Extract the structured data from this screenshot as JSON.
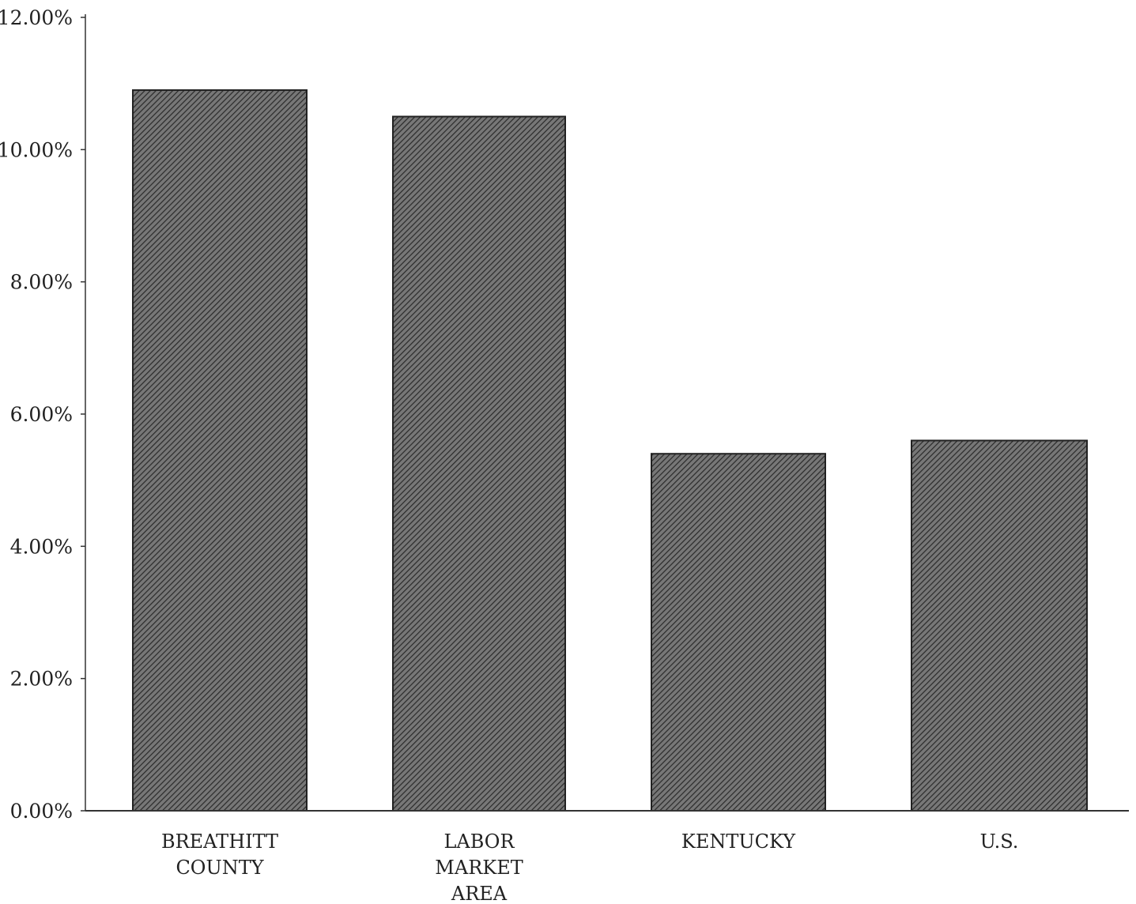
{
  "chart_data": {
    "type": "bar",
    "categories": [
      [
        "BREATHITT",
        "COUNTY"
      ],
      [
        "LABOR",
        "MARKET",
        "AREA"
      ],
      [
        "KENTUCKY"
      ],
      [
        "U.S."
      ]
    ],
    "values": [
      10.9,
      10.5,
      5.4,
      5.6
    ],
    "ylim": [
      0,
      12
    ],
    "yticks": [
      {
        "value": 0,
        "label": "0.00%"
      },
      {
        "value": 2,
        "label": "2.00%"
      },
      {
        "value": 4,
        "label": "4.00%"
      },
      {
        "value": 6,
        "label": "6.00%"
      },
      {
        "value": 8,
        "label": "8.00%"
      },
      {
        "value": 10,
        "label": "10.00%"
      },
      {
        "value": 12,
        "label": "12.00%"
      }
    ],
    "title": "",
    "xlabel": "",
    "ylabel": "",
    "grid": false,
    "bar_fill": "hatched-diagonal",
    "colors": {
      "bar_fill": "#6a6a6a",
      "hatch": "#2a2a2a",
      "axis": "#333333",
      "bar_stroke": "#222222"
    }
  }
}
